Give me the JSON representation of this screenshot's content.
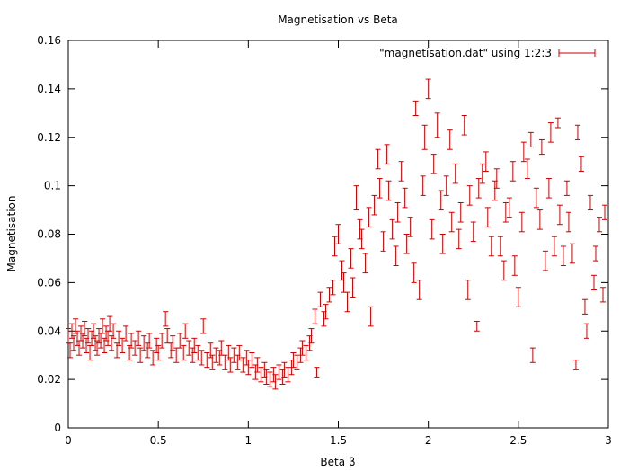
{
  "chart_data": {
    "type": "scatter",
    "title": "Magnetisation vs Beta",
    "xlabel": "Beta β",
    "ylabel": "Magnetisation",
    "xlim": [
      0,
      3
    ],
    "ylim": [
      0,
      0.16
    ],
    "xticks": [
      0,
      0.5,
      1,
      1.5,
      2,
      2.5,
      3
    ],
    "xtick_labels": [
      "0",
      "0.5",
      "1",
      "1.5",
      "2",
      "2.5",
      "3"
    ],
    "yticks": [
      0,
      0.02,
      0.04,
      0.06,
      0.08,
      0.1,
      0.12,
      0.14,
      0.16
    ],
    "ytick_labels": [
      "0",
      "0.02",
      "0.04",
      "0.06",
      "0.08",
      "0.1",
      "0.12",
      "0.14",
      "0.16"
    ],
    "legend": {
      "label": "\"magnetisation.dat\" using 1:2:3",
      "position": "top-right"
    },
    "series_color": "#cc0000",
    "series": [
      {
        "name": "\"magnetisation.dat\" using 1:2:3",
        "columns": [
          "x",
          "y",
          "err"
        ],
        "points": [
          [
            0.0,
            0.038,
            0.003
          ],
          [
            0.01,
            0.032,
            0.003
          ],
          [
            0.02,
            0.04,
            0.003
          ],
          [
            0.03,
            0.035,
            0.003
          ],
          [
            0.04,
            0.042,
            0.003
          ],
          [
            0.05,
            0.037,
            0.003
          ],
          [
            0.06,
            0.033,
            0.003
          ],
          [
            0.07,
            0.039,
            0.003
          ],
          [
            0.08,
            0.036,
            0.003
          ],
          [
            0.09,
            0.041,
            0.003
          ],
          [
            0.1,
            0.034,
            0.003
          ],
          [
            0.11,
            0.038,
            0.003
          ],
          [
            0.12,
            0.031,
            0.003
          ],
          [
            0.13,
            0.037,
            0.003
          ],
          [
            0.14,
            0.04,
            0.003
          ],
          [
            0.15,
            0.035,
            0.003
          ],
          [
            0.16,
            0.033,
            0.003
          ],
          [
            0.17,
            0.038,
            0.003
          ],
          [
            0.18,
            0.036,
            0.003
          ],
          [
            0.19,
            0.042,
            0.003
          ],
          [
            0.2,
            0.034,
            0.003
          ],
          [
            0.21,
            0.039,
            0.003
          ],
          [
            0.22,
            0.037,
            0.003
          ],
          [
            0.23,
            0.043,
            0.003
          ],
          [
            0.24,
            0.035,
            0.003
          ],
          [
            0.25,
            0.04,
            0.003
          ],
          [
            0.27,
            0.032,
            0.003
          ],
          [
            0.28,
            0.037,
            0.003
          ],
          [
            0.3,
            0.034,
            0.003
          ],
          [
            0.32,
            0.039,
            0.003
          ],
          [
            0.34,
            0.031,
            0.003
          ],
          [
            0.35,
            0.036,
            0.003
          ],
          [
            0.37,
            0.033,
            0.003
          ],
          [
            0.39,
            0.037,
            0.003
          ],
          [
            0.4,
            0.03,
            0.003
          ],
          [
            0.42,
            0.035,
            0.003
          ],
          [
            0.44,
            0.032,
            0.003
          ],
          [
            0.45,
            0.036,
            0.003
          ],
          [
            0.47,
            0.029,
            0.003
          ],
          [
            0.49,
            0.034,
            0.003
          ],
          [
            0.5,
            0.031,
            0.003
          ],
          [
            0.52,
            0.036,
            0.003
          ],
          [
            0.54,
            0.045,
            0.003
          ],
          [
            0.55,
            0.038,
            0.003
          ],
          [
            0.57,
            0.032,
            0.003
          ],
          [
            0.58,
            0.035,
            0.003
          ],
          [
            0.6,
            0.03,
            0.003
          ],
          [
            0.62,
            0.036,
            0.003
          ],
          [
            0.64,
            0.031,
            0.003
          ],
          [
            0.65,
            0.04,
            0.003
          ],
          [
            0.67,
            0.033,
            0.003
          ],
          [
            0.69,
            0.03,
            0.003
          ],
          [
            0.7,
            0.034,
            0.003
          ],
          [
            0.72,
            0.031,
            0.003
          ],
          [
            0.74,
            0.029,
            0.003
          ],
          [
            0.75,
            0.042,
            0.003
          ],
          [
            0.77,
            0.028,
            0.003
          ],
          [
            0.79,
            0.032,
            0.003
          ],
          [
            0.8,
            0.027,
            0.003
          ],
          [
            0.82,
            0.03,
            0.003
          ],
          [
            0.84,
            0.029,
            0.003
          ],
          [
            0.85,
            0.033,
            0.003
          ],
          [
            0.87,
            0.027,
            0.003
          ],
          [
            0.89,
            0.031,
            0.003
          ],
          [
            0.9,
            0.026,
            0.003
          ],
          [
            0.92,
            0.03,
            0.003
          ],
          [
            0.94,
            0.027,
            0.003
          ],
          [
            0.95,
            0.031,
            0.003
          ],
          [
            0.97,
            0.026,
            0.003
          ],
          [
            0.99,
            0.029,
            0.003
          ],
          [
            1.0,
            0.025,
            0.003
          ],
          [
            1.02,
            0.028,
            0.003
          ],
          [
            1.04,
            0.023,
            0.003
          ],
          [
            1.05,
            0.026,
            0.003
          ],
          [
            1.07,
            0.022,
            0.003
          ],
          [
            1.09,
            0.024,
            0.003
          ],
          [
            1.1,
            0.021,
            0.003
          ],
          [
            1.12,
            0.02,
            0.003
          ],
          [
            1.14,
            0.022,
            0.003
          ],
          [
            1.15,
            0.019,
            0.003
          ],
          [
            1.17,
            0.023,
            0.003
          ],
          [
            1.19,
            0.021,
            0.003
          ],
          [
            1.2,
            0.024,
            0.003
          ],
          [
            1.22,
            0.022,
            0.003
          ],
          [
            1.24,
            0.025,
            0.003
          ],
          [
            1.25,
            0.028,
            0.003
          ],
          [
            1.27,
            0.027,
            0.003
          ],
          [
            1.29,
            0.03,
            0.003
          ],
          [
            1.3,
            0.033,
            0.003
          ],
          [
            1.32,
            0.031,
            0.003
          ],
          [
            1.34,
            0.035,
            0.003
          ],
          [
            1.35,
            0.038,
            0.003
          ],
          [
            1.37,
            0.046,
            0.003
          ],
          [
            1.38,
            0.023,
            0.002
          ],
          [
            1.4,
            0.053,
            0.003
          ],
          [
            1.42,
            0.045,
            0.003
          ],
          [
            1.43,
            0.048,
            0.003
          ],
          [
            1.45,
            0.055,
            0.003
          ],
          [
            1.47,
            0.058,
            0.003
          ],
          [
            1.48,
            0.075,
            0.004
          ],
          [
            1.5,
            0.08,
            0.004
          ],
          [
            1.52,
            0.065,
            0.004
          ],
          [
            1.53,
            0.06,
            0.004
          ],
          [
            1.55,
            0.052,
            0.004
          ],
          [
            1.57,
            0.07,
            0.004
          ],
          [
            1.58,
            0.058,
            0.004
          ],
          [
            1.6,
            0.095,
            0.005
          ],
          [
            1.62,
            0.082,
            0.004
          ],
          [
            1.63,
            0.078,
            0.004
          ],
          [
            1.65,
            0.068,
            0.004
          ],
          [
            1.67,
            0.087,
            0.004
          ],
          [
            1.68,
            0.046,
            0.004
          ],
          [
            1.7,
            0.092,
            0.004
          ],
          [
            1.72,
            0.111,
            0.004
          ],
          [
            1.73,
            0.099,
            0.004
          ],
          [
            1.75,
            0.077,
            0.004
          ],
          [
            1.77,
            0.113,
            0.004
          ],
          [
            1.78,
            0.098,
            0.004
          ],
          [
            1.8,
            0.082,
            0.004
          ],
          [
            1.82,
            0.071,
            0.004
          ],
          [
            1.83,
            0.089,
            0.004
          ],
          [
            1.85,
            0.106,
            0.004
          ],
          [
            1.87,
            0.095,
            0.004
          ],
          [
            1.88,
            0.076,
            0.004
          ],
          [
            1.9,
            0.083,
            0.004
          ],
          [
            1.92,
            0.064,
            0.004
          ],
          [
            1.93,
            0.132,
            0.003
          ],
          [
            1.95,
            0.057,
            0.004
          ],
          [
            1.97,
            0.1,
            0.004
          ],
          [
            1.98,
            0.12,
            0.005
          ],
          [
            2.0,
            0.14,
            0.004
          ],
          [
            2.02,
            0.082,
            0.004
          ],
          [
            2.03,
            0.109,
            0.004
          ],
          [
            2.05,
            0.125,
            0.005
          ],
          [
            2.07,
            0.094,
            0.004
          ],
          [
            2.08,
            0.076,
            0.004
          ],
          [
            2.1,
            0.1,
            0.004
          ],
          [
            2.12,
            0.119,
            0.004
          ],
          [
            2.13,
            0.085,
            0.004
          ],
          [
            2.15,
            0.105,
            0.004
          ],
          [
            2.17,
            0.078,
            0.004
          ],
          [
            2.18,
            0.089,
            0.004
          ],
          [
            2.2,
            0.125,
            0.004
          ],
          [
            2.22,
            0.057,
            0.004
          ],
          [
            2.23,
            0.096,
            0.004
          ],
          [
            2.25,
            0.081,
            0.004
          ],
          [
            2.27,
            0.042,
            0.002
          ],
          [
            2.28,
            0.099,
            0.004
          ],
          [
            2.3,
            0.105,
            0.004
          ],
          [
            2.32,
            0.11,
            0.004
          ],
          [
            2.33,
            0.087,
            0.004
          ],
          [
            2.35,
            0.075,
            0.004
          ],
          [
            2.37,
            0.098,
            0.004
          ],
          [
            2.38,
            0.103,
            0.004
          ],
          [
            2.4,
            0.075,
            0.004
          ],
          [
            2.42,
            0.065,
            0.004
          ],
          [
            2.43,
            0.089,
            0.004
          ],
          [
            2.45,
            0.091,
            0.004
          ],
          [
            2.47,
            0.106,
            0.004
          ],
          [
            2.48,
            0.067,
            0.004
          ],
          [
            2.5,
            0.054,
            0.004
          ],
          [
            2.52,
            0.085,
            0.004
          ],
          [
            2.53,
            0.114,
            0.004
          ],
          [
            2.55,
            0.107,
            0.004
          ],
          [
            2.57,
            0.119,
            0.003
          ],
          [
            2.58,
            0.03,
            0.003
          ],
          [
            2.6,
            0.095,
            0.004
          ],
          [
            2.62,
            0.086,
            0.004
          ],
          [
            2.63,
            0.116,
            0.003
          ],
          [
            2.65,
            0.069,
            0.004
          ],
          [
            2.67,
            0.099,
            0.004
          ],
          [
            2.68,
            0.122,
            0.004
          ],
          [
            2.7,
            0.075,
            0.004
          ],
          [
            2.72,
            0.126,
            0.002
          ],
          [
            2.73,
            0.088,
            0.004
          ],
          [
            2.75,
            0.071,
            0.004
          ],
          [
            2.77,
            0.099,
            0.003
          ],
          [
            2.78,
            0.085,
            0.004
          ],
          [
            2.8,
            0.072,
            0.004
          ],
          [
            2.82,
            0.026,
            0.002
          ],
          [
            2.83,
            0.122,
            0.003
          ],
          [
            2.85,
            0.109,
            0.003
          ],
          [
            2.87,
            0.05,
            0.003
          ],
          [
            2.88,
            0.04,
            0.003
          ],
          [
            2.9,
            0.093,
            0.003
          ],
          [
            2.92,
            0.06,
            0.003
          ],
          [
            2.93,
            0.072,
            0.003
          ],
          [
            2.95,
            0.084,
            0.003
          ],
          [
            2.97,
            0.055,
            0.003
          ],
          [
            2.98,
            0.089,
            0.003
          ]
        ]
      }
    ]
  }
}
